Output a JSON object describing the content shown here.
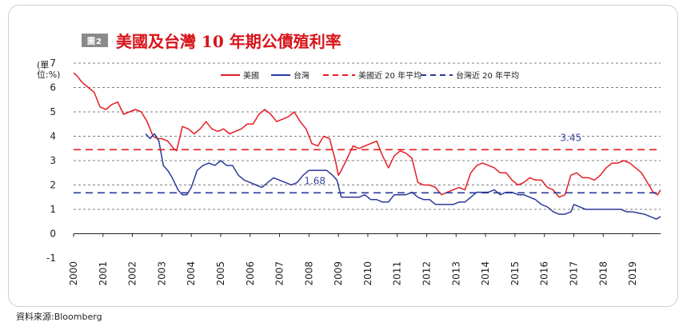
{
  "header": {
    "badge": "圖2",
    "title": "美國及台灣 10 年期公債殖利率"
  },
  "unit_label": "(單位:%)",
  "source": "資料來源:Bloomberg",
  "colors": {
    "us": "#e51d23",
    "tw": "#2b3a9a",
    "grid": "#555555"
  },
  "chart_data": {
    "type": "line",
    "title": "美國及台灣 10 年期公債殖利率",
    "xlabel": "",
    "ylabel": "(單位:%)",
    "ylim": [
      -1,
      7
    ],
    "xlim": [
      2000,
      2019.95
    ],
    "yticks": [
      -1,
      0,
      1,
      2,
      3,
      4,
      5,
      6,
      7
    ],
    "xticks": [
      "2000",
      "2001",
      "2002",
      "2003",
      "2004",
      "2005",
      "2006",
      "2007",
      "2008",
      "2009",
      "2010",
      "2011",
      "2012",
      "2013",
      "2014",
      "2015",
      "2016",
      "2017",
      "2018",
      "2019"
    ],
    "legend_position": "top",
    "grid": "horizontal dashed",
    "series": [
      {
        "name": "美國",
        "style": "solid",
        "color": "#e51d23",
        "x": [
          2000.0,
          2000.1,
          2000.3,
          2000.5,
          2000.7,
          2000.9,
          2001.1,
          2001.3,
          2001.5,
          2001.7,
          2001.9,
          2002.1,
          2002.3,
          2002.5,
          2002.7,
          2002.85,
          2003.0,
          2003.2,
          2003.4,
          2003.5,
          2003.7,
          2003.9,
          2004.1,
          2004.3,
          2004.5,
          2004.7,
          2004.9,
          2005.1,
          2005.3,
          2005.5,
          2005.7,
          2005.9,
          2006.1,
          2006.3,
          2006.5,
          2006.7,
          2006.9,
          2007.1,
          2007.3,
          2007.5,
          2007.7,
          2007.9,
          2008.1,
          2008.3,
          2008.5,
          2008.7,
          2008.9,
          2009.0,
          2009.1,
          2009.3,
          2009.5,
          2009.7,
          2009.9,
          2010.1,
          2010.3,
          2010.5,
          2010.7,
          2010.9,
          2011.1,
          2011.3,
          2011.5,
          2011.7,
          2011.9,
          2012.1,
          2012.3,
          2012.5,
          2012.7,
          2012.9,
          2013.1,
          2013.3,
          2013.5,
          2013.7,
          2013.9,
          2014.1,
          2014.3,
          2014.5,
          2014.7,
          2014.9,
          2015.1,
          2015.3,
          2015.5,
          2015.7,
          2015.9,
          2016.1,
          2016.3,
          2016.5,
          2016.7,
          2016.9,
          2017.1,
          2017.3,
          2017.5,
          2017.7,
          2017.9,
          2018.1,
          2018.3,
          2018.5,
          2018.7,
          2018.9,
          2019.1,
          2019.3,
          2019.5,
          2019.7,
          2019.85,
          2019.95
        ],
        "y": [
          6.6,
          6.5,
          6.2,
          6.0,
          5.8,
          5.2,
          5.1,
          5.3,
          5.4,
          4.9,
          5.0,
          5.1,
          5.0,
          4.6,
          4.0,
          3.9,
          3.9,
          3.8,
          3.5,
          3.4,
          4.4,
          4.3,
          4.1,
          4.3,
          4.6,
          4.3,
          4.2,
          4.3,
          4.1,
          4.2,
          4.3,
          4.5,
          4.5,
          4.9,
          5.1,
          4.9,
          4.6,
          4.7,
          4.8,
          5.0,
          4.6,
          4.3,
          3.7,
          3.6,
          4.0,
          3.9,
          3.0,
          2.4,
          2.6,
          3.1,
          3.6,
          3.5,
          3.6,
          3.7,
          3.8,
          3.2,
          2.7,
          3.2,
          3.4,
          3.3,
          3.1,
          2.1,
          2.0,
          2.0,
          1.9,
          1.6,
          1.7,
          1.8,
          1.9,
          1.8,
          2.5,
          2.8,
          2.9,
          2.8,
          2.7,
          2.5,
          2.5,
          2.2,
          2.0,
          2.1,
          2.3,
          2.2,
          2.2,
          1.9,
          1.8,
          1.5,
          1.6,
          2.4,
          2.5,
          2.3,
          2.3,
          2.2,
          2.4,
          2.7,
          2.9,
          2.9,
          3.0,
          2.9,
          2.7,
          2.5,
          2.1,
          1.7,
          1.6,
          1.8
        ]
      },
      {
        "name": "台灣",
        "style": "solid",
        "color": "#2b3a9a",
        "x": [
          2002.45,
          2002.6,
          2002.75,
          2002.9,
          2003.05,
          2003.2,
          2003.35,
          2003.55,
          2003.7,
          2003.85,
          2004.0,
          2004.2,
          2004.4,
          2004.6,
          2004.8,
          2005.0,
          2005.2,
          2005.4,
          2005.6,
          2005.8,
          2006.0,
          2006.2,
          2006.4,
          2006.6,
          2006.8,
          2007.0,
          2007.2,
          2007.4,
          2007.6,
          2007.8,
          2008.0,
          2008.2,
          2008.4,
          2008.6,
          2008.8,
          2008.95,
          2009.1,
          2009.3,
          2009.5,
          2009.7,
          2009.9,
          2010.1,
          2010.3,
          2010.5,
          2010.7,
          2010.9,
          2011.1,
          2011.3,
          2011.5,
          2011.7,
          2011.9,
          2012.1,
          2012.3,
          2012.5,
          2012.7,
          2012.9,
          2013.1,
          2013.3,
          2013.5,
          2013.7,
          2013.9,
          2014.1,
          2014.3,
          2014.5,
          2014.7,
          2014.9,
          2015.1,
          2015.3,
          2015.5,
          2015.7,
          2015.9,
          2016.1,
          2016.3,
          2016.5,
          2016.7,
          2016.9,
          2017.0,
          2017.2,
          2017.4,
          2017.6,
          2017.8,
          2018.0,
          2018.2,
          2018.4,
          2018.6,
          2018.8,
          2019.0,
          2019.2,
          2019.4,
          2019.6,
          2019.8,
          2019.95
        ],
        "y": [
          4.1,
          3.9,
          4.1,
          3.8,
          2.8,
          2.6,
          2.3,
          1.8,
          1.6,
          1.6,
          1.9,
          2.6,
          2.8,
          2.9,
          2.8,
          3.0,
          2.8,
          2.8,
          2.4,
          2.2,
          2.1,
          2.0,
          1.9,
          2.1,
          2.3,
          2.2,
          2.1,
          2.0,
          2.1,
          2.4,
          2.6,
          2.6,
          2.6,
          2.6,
          2.4,
          2.2,
          1.5,
          1.5,
          1.5,
          1.5,
          1.6,
          1.4,
          1.4,
          1.3,
          1.3,
          1.6,
          1.6,
          1.6,
          1.7,
          1.5,
          1.4,
          1.4,
          1.2,
          1.2,
          1.2,
          1.2,
          1.3,
          1.3,
          1.5,
          1.7,
          1.7,
          1.7,
          1.8,
          1.6,
          1.7,
          1.7,
          1.6,
          1.6,
          1.5,
          1.4,
          1.2,
          1.1,
          0.9,
          0.8,
          0.8,
          0.9,
          1.2,
          1.1,
          1.0,
          1.0,
          1.0,
          1.0,
          1.0,
          1.0,
          1.0,
          0.9,
          0.9,
          0.85,
          0.8,
          0.7,
          0.6,
          0.7
        ]
      },
      {
        "name": "美國近 20 年平均",
        "style": "dashed",
        "color": "#e51d23",
        "x": [
          2000,
          2019.95
        ],
        "y": [
          3.45,
          3.45
        ]
      },
      {
        "name": "台灣近 20 年平均",
        "style": "dashed",
        "color": "#2b3a9a",
        "x": [
          2000,
          2019.95
        ],
        "y": [
          1.68,
          1.68
        ]
      }
    ],
    "annotations": [
      {
        "text": "3.45",
        "x": 2016.9,
        "y": 3.45,
        "color": "#3a46a0"
      },
      {
        "text": "1.68",
        "x": 2008.2,
        "y": 1.68,
        "color": "#3a46a0"
      }
    ]
  }
}
